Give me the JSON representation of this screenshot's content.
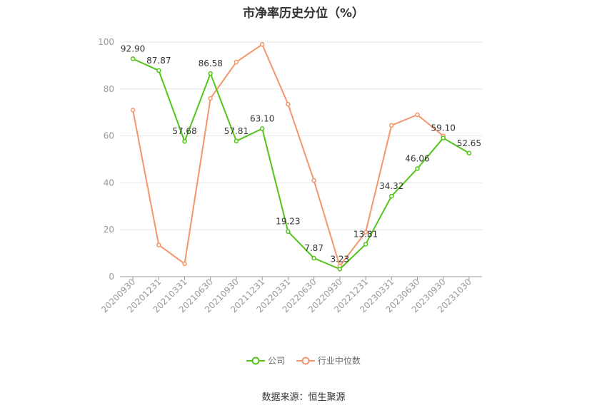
{
  "chart_data": {
    "type": "line",
    "title": "市净率历史分位（%）",
    "categories": [
      "20200930",
      "20201231",
      "20210331",
      "20210630",
      "20210930",
      "20211231",
      "20220331",
      "20220630",
      "20220930",
      "20221231",
      "20230331",
      "20230630",
      "20230930",
      "20231030"
    ],
    "ylim": [
      0,
      100
    ],
    "yticks": [
      0,
      20,
      40,
      60,
      80,
      100
    ],
    "grid": true,
    "legend_position": "bottom",
    "series": [
      {
        "name": "公司",
        "color": "#52c41a",
        "values": [
          92.9,
          87.87,
          57.68,
          86.58,
          57.81,
          63.1,
          19.23,
          7.87,
          3.23,
          13.81,
          34.32,
          46.06,
          59.1,
          52.65
        ],
        "labels": [
          "92.90",
          "87.87",
          "57.68",
          "86.58",
          "57.81",
          "63.10",
          "19.23",
          "7.87",
          "3.23",
          "13.81",
          "34.32",
          "46.06",
          "59.10",
          "52.65"
        ]
      },
      {
        "name": "行业中位数",
        "color": "#f4956a",
        "values": [
          71,
          13.5,
          5.5,
          76,
          91.5,
          99,
          73.5,
          41,
          4.5,
          19,
          64.5,
          69,
          60,
          null
        ]
      }
    ]
  },
  "legend": {
    "company": "公司",
    "industry": "行业中位数"
  },
  "source": "数据来源：恒生聚源"
}
